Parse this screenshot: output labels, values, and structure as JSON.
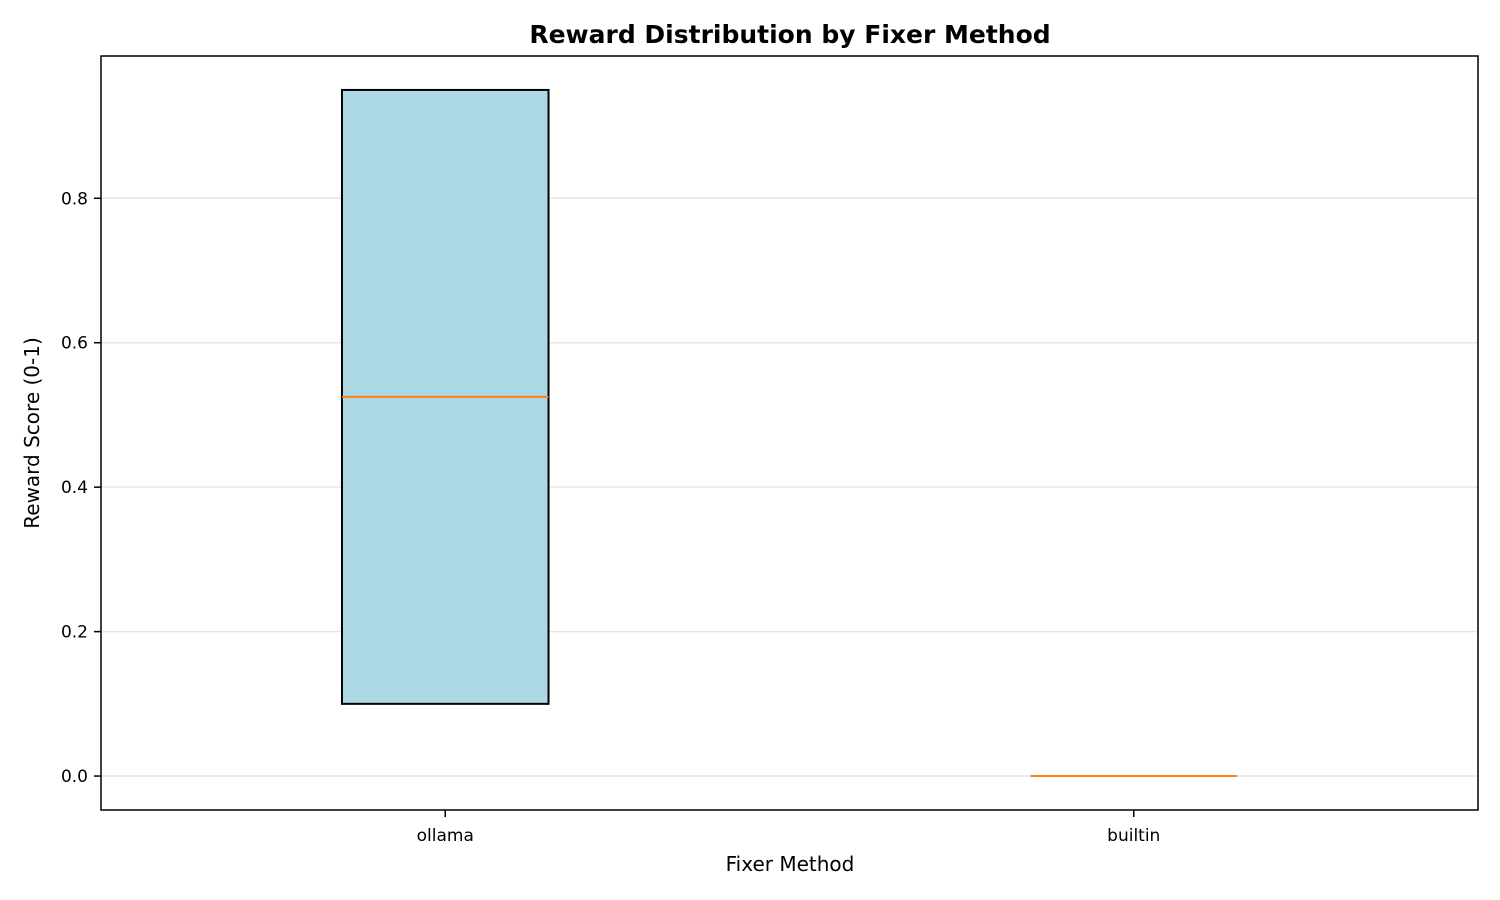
{
  "chart_data": {
    "type": "box",
    "title": "Reward Distribution by Fixer Method",
    "xlabel": "Fixer Method",
    "ylabel": "Reward Score (0-1)",
    "ylim": [
      -0.047,
      0.997
    ],
    "yticks": [
      0.0,
      0.2,
      0.4,
      0.6,
      0.8
    ],
    "ytick_labels": [
      "0.0",
      "0.2",
      "0.4",
      "0.6",
      "0.8"
    ],
    "grid": "y",
    "categories": [
      "ollama",
      "builtin"
    ],
    "boxes": [
      {
        "category": "ollama",
        "q1": 0.1,
        "median": 0.525,
        "q3": 0.95,
        "whisker_low": 0.1,
        "whisker_high": 0.95
      },
      {
        "category": "builtin",
        "q1": 0.0,
        "median": 0.0,
        "q3": 0.0,
        "whisker_low": 0.0,
        "whisker_high": 0.0
      }
    ],
    "colors": {
      "box_fill": "#add8e6",
      "box_edge": "#000000",
      "median": "#ff7f0e",
      "grid": "#e6e6e6",
      "axis": "#000000"
    }
  }
}
